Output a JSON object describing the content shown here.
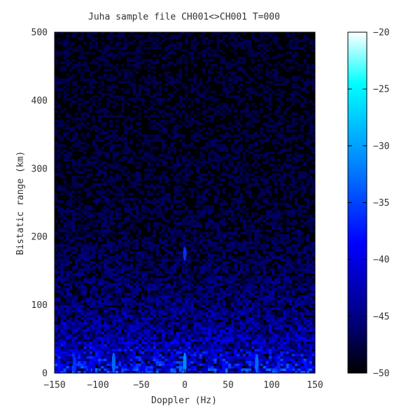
{
  "chart_data": {
    "type": "heatmap",
    "title": "Juha sample file CH001<>CH001 T=000",
    "xlabel": "Doppler (Hz)",
    "ylabel": "Bistatic range (km)",
    "xlim": [
      -150,
      150
    ],
    "ylim": [
      0,
      500
    ],
    "x_ticks": [
      -150,
      -100,
      -50,
      0,
      50,
      100,
      150
    ],
    "x_tick_labels": [
      "−150",
      "−100",
      "−50",
      "0",
      "50",
      "100",
      "150"
    ],
    "y_ticks": [
      0,
      100,
      200,
      300,
      400,
      500
    ],
    "y_tick_labels": [
      "0",
      "100",
      "200",
      "300",
      "400",
      "500"
    ],
    "colorbar": {
      "range": [
        -50,
        -20
      ],
      "ticks": [
        -20,
        -25,
        -30,
        -35,
        -40,
        -45,
        -50
      ],
      "tick_labels": [
        "−20",
        "−25",
        "−30",
        "−35",
        "−40",
        "−45",
        "−50"
      ],
      "colormap": [
        "#000000",
        "#00007a",
        "#0000ff",
        "#0088ff",
        "#00ffff",
        "#ffffff"
      ]
    },
    "features": [
      {
        "doppler": 0,
        "range_from": 165,
        "range_to": 185,
        "level": -36
      },
      {
        "doppler": -145,
        "range_from": 0,
        "range_to": 20,
        "level": -38
      },
      {
        "doppler": -127,
        "range_from": 0,
        "range_to": 25,
        "level": -36
      },
      {
        "doppler": -110,
        "range_from": 0,
        "range_to": 15,
        "level": -40
      },
      {
        "doppler": -82,
        "range_from": 0,
        "range_to": 30,
        "level": -33
      },
      {
        "doppler": -62,
        "range_from": 0,
        "range_to": 12,
        "level": -40
      },
      {
        "doppler": -47,
        "range_from": 0,
        "range_to": 18,
        "level": -40
      },
      {
        "doppler": -22,
        "range_from": 0,
        "range_to": 12,
        "level": -42
      },
      {
        "doppler": 0,
        "range_from": 0,
        "range_to": 30,
        "level": -31
      },
      {
        "doppler": 22,
        "range_from": 0,
        "range_to": 10,
        "level": -42
      },
      {
        "doppler": 45,
        "range_from": 0,
        "range_to": 18,
        "level": -38
      },
      {
        "doppler": 63,
        "range_from": 0,
        "range_to": 12,
        "level": -40
      },
      {
        "doppler": 83,
        "range_from": 0,
        "range_to": 28,
        "level": -33
      },
      {
        "doppler": 108,
        "range_from": 0,
        "range_to": 18,
        "level": -37
      },
      {
        "doppler": 122,
        "range_from": 0,
        "range_to": 15,
        "level": -38
      },
      {
        "doppler": 140,
        "range_from": 0,
        "range_to": 18,
        "level": -38
      }
    ]
  }
}
